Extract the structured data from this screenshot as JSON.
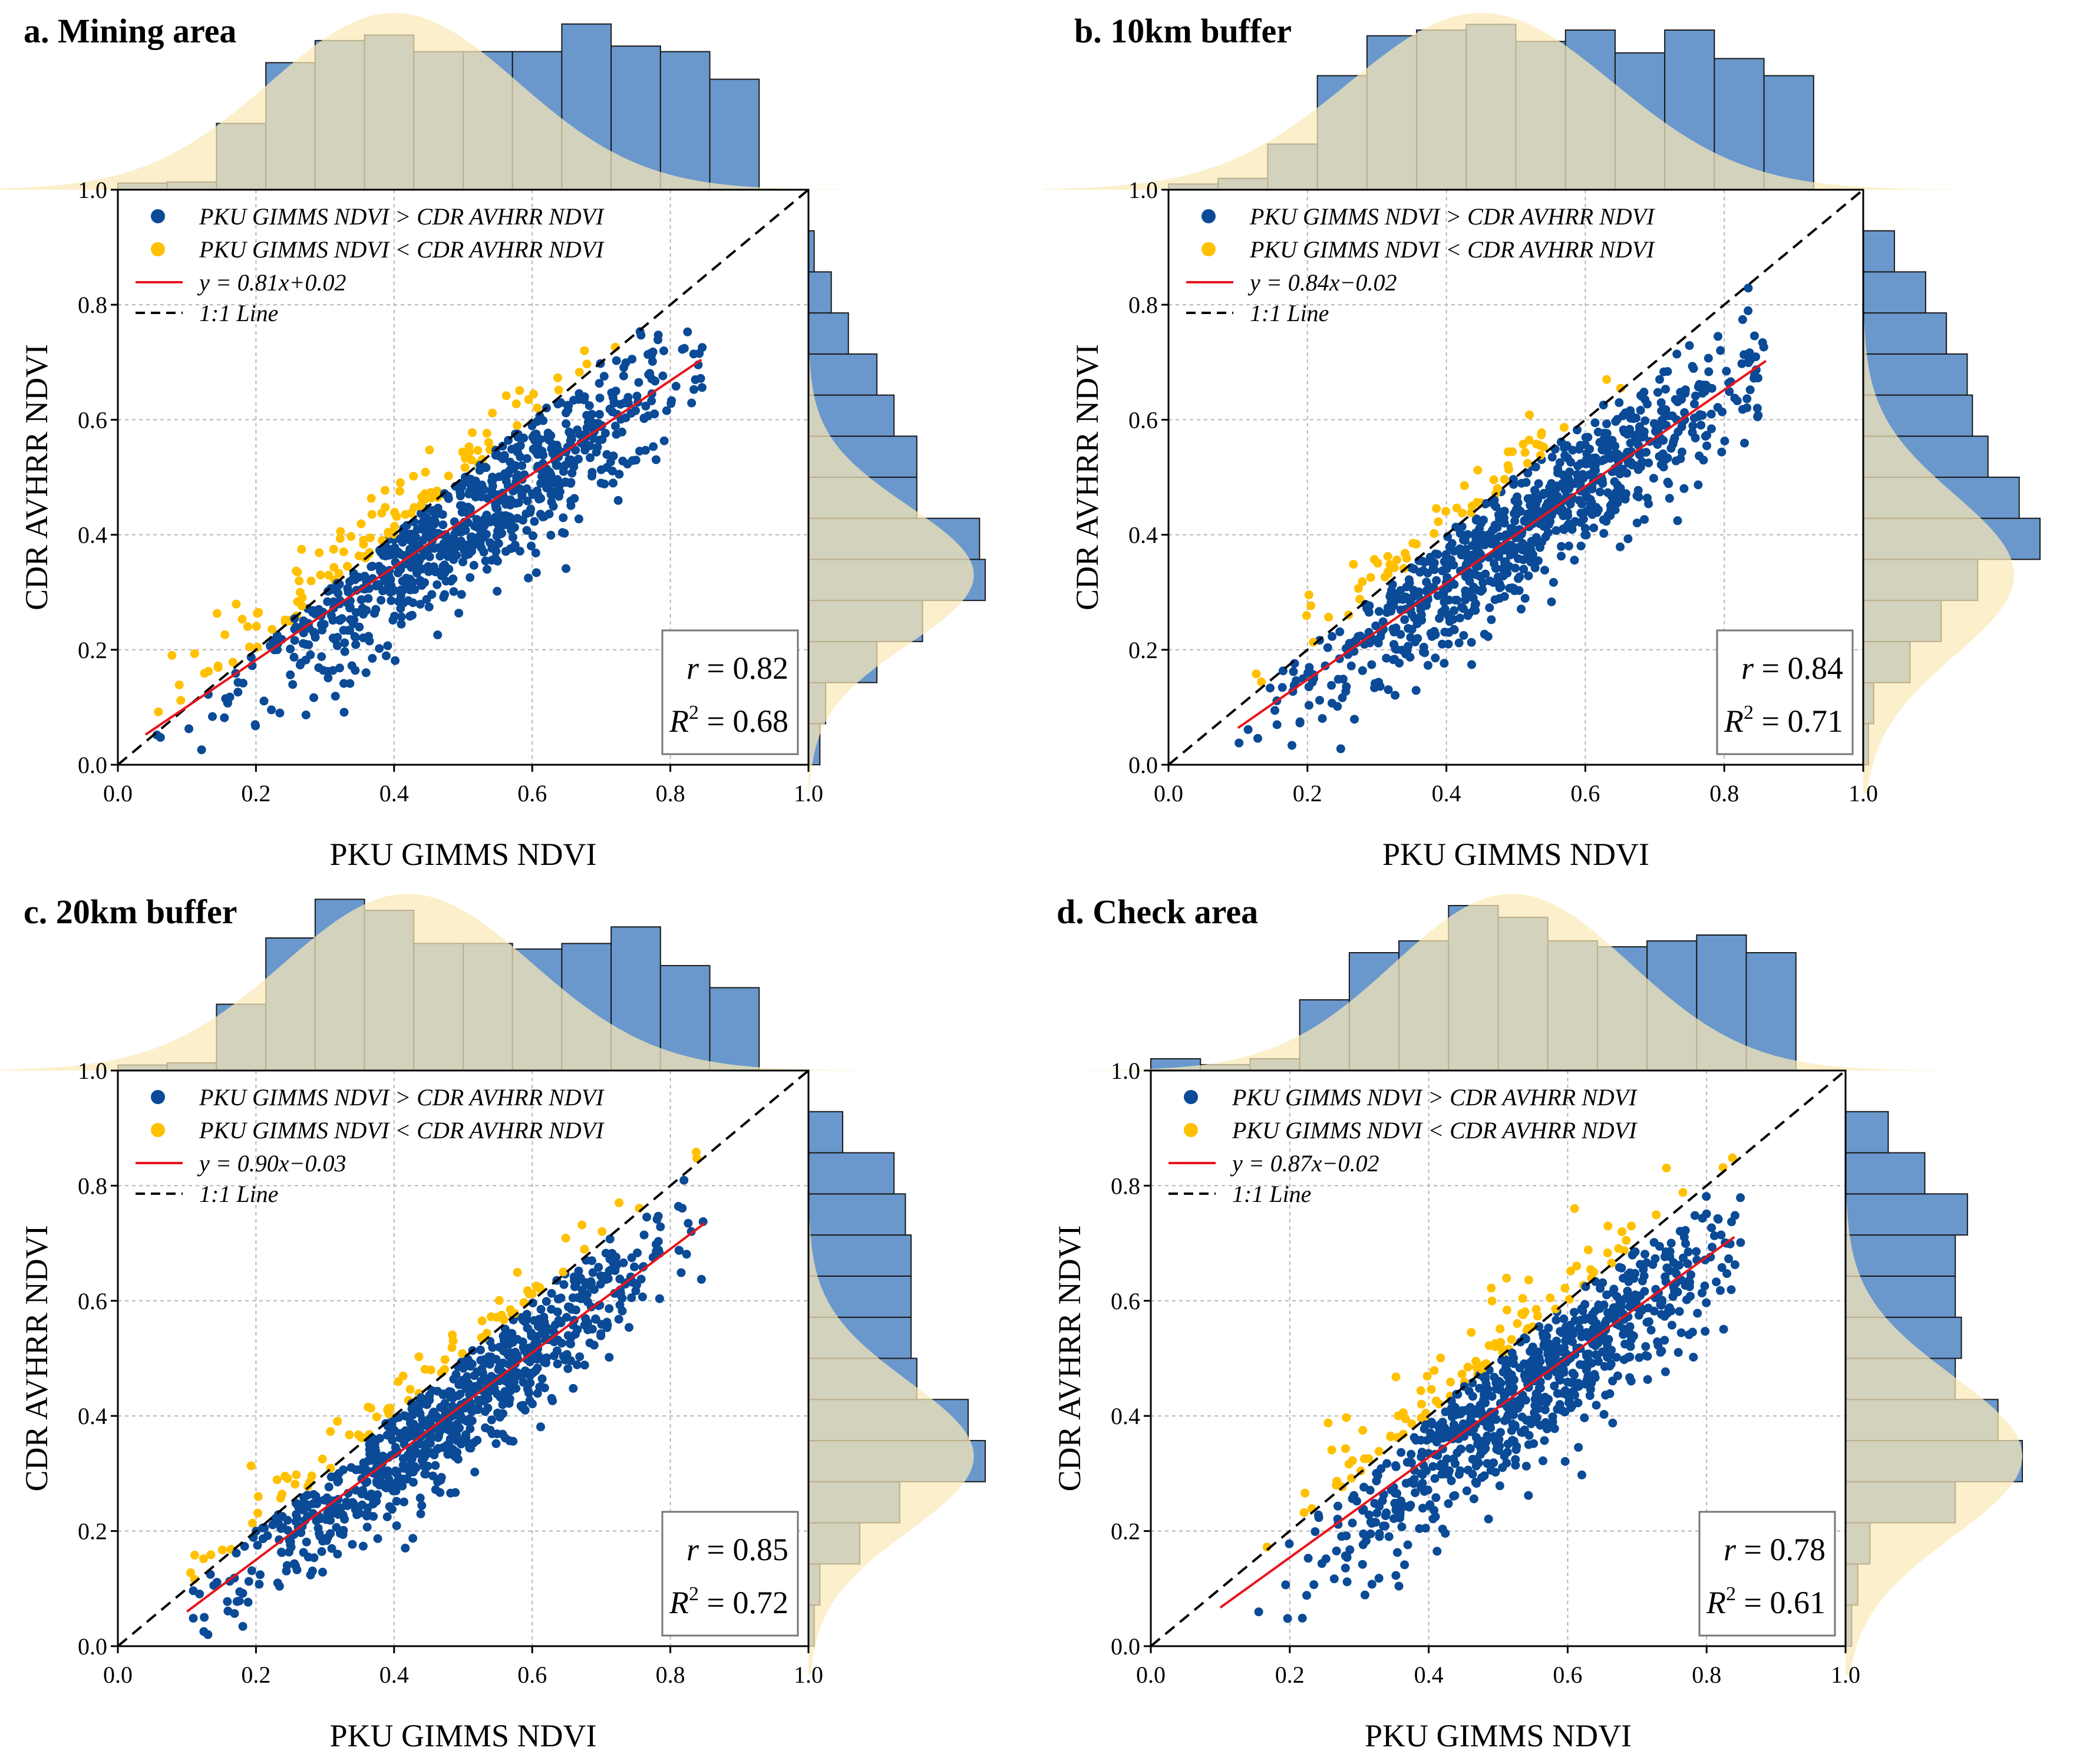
{
  "figure": {
    "colors": {
      "above": "#0a4a96",
      "below": "#ffc000",
      "fit": "#e8141c",
      "one_to_one": "#000000",
      "hist_fill": "#6a98cc",
      "kde_fill": "#fbe9b7",
      "grid": "#b5b5b5"
    }
  },
  "chart_data": [
    {
      "id": "a",
      "type": "scatter",
      "title": "a. Mining area",
      "xlabel": "PKU GIMMS NDVI",
      "ylabel": "CDR AVHRR NDVI",
      "xlim": [
        0.0,
        1.0
      ],
      "ylim": [
        0.0,
        1.0
      ],
      "xticks": [
        "0.0",
        "0.2",
        "0.4",
        "0.6",
        "0.8",
        "1.0"
      ],
      "yticks": [
        "0.0",
        "0.2",
        "0.4",
        "0.6",
        "0.8",
        "1.0"
      ],
      "legend": {
        "above": "PKU GIMMS NDVI > CDR AVHRR NDVI",
        "below": "PKU GIMMS NDVI < CDR AVHRR NDVI",
        "fit": "y = 0.81x+0.02",
        "one_to_one": "1:1 Line"
      },
      "fit": {
        "slope": 0.81,
        "intercept": 0.02,
        "x_range": [
          0.04,
          0.845
        ]
      },
      "stats": {
        "r_label": "r",
        "r_value": "0.82",
        "r2_label": "R",
        "r2_sup": "2",
        "r2_value": "0.68"
      },
      "scatter": {
        "n_points": 900,
        "x_center": 0.5,
        "x_spread": 0.17,
        "x_range": [
          0.04,
          0.85
        ],
        "residual_sd": 0.065
      },
      "hist_x": [
        0.06,
        0.07,
        0.6,
        1.15,
        1.35,
        1.4,
        1.25,
        1.25,
        1.25,
        1.5,
        1.3,
        1.25,
        1.0,
        0.0
      ],
      "hist_y": [
        0.1,
        0.15,
        0.6,
        1.0,
        1.55,
        1.5,
        0.95,
        0.95,
        0.75,
        0.6,
        0.35,
        0.2,
        0.05,
        0.0
      ],
      "kde_x": {
        "mu": 0.4,
        "sigma": 0.18,
        "peak": 1.6
      },
      "kde_y": {
        "mu": 0.33,
        "sigma": 0.12,
        "peak": 1.45
      }
    },
    {
      "id": "b",
      "type": "scatter",
      "title": "b. 10km buffer",
      "xlabel": "PKU GIMMS NDVI",
      "ylabel": "CDR AVHRR NDVI",
      "xlim": [
        0.0,
        1.0
      ],
      "ylim": [
        0.0,
        1.0
      ],
      "xticks": [
        "0.0",
        "0.2",
        "0.4",
        "0.6",
        "0.8",
        "1.0"
      ],
      "yticks": [
        "0.0",
        "0.2",
        "0.4",
        "0.6",
        "0.8",
        "1.0"
      ],
      "legend": {
        "above": "PKU GIMMS NDVI > CDR AVHRR NDVI",
        "below": "PKU GIMMS NDVI < CDR AVHRR NDVI",
        "fit": "y = 0.84x−0.02",
        "one_to_one": "1:1 Line"
      },
      "fit": {
        "slope": 0.84,
        "intercept": -0.02,
        "x_range": [
          0.1,
          0.86
        ]
      },
      "stats": {
        "r_label": "r",
        "r_value": "0.84",
        "r2_label": "R",
        "r2_sup": "2",
        "r2_value": "0.71"
      },
      "scatter": {
        "n_points": 900,
        "x_center": 0.52,
        "x_spread": 0.17,
        "x_range": [
          0.1,
          0.86
        ],
        "residual_sd": 0.06
      },
      "hist_x": [
        0.05,
        0.1,
        0.4,
        1.0,
        1.35,
        1.4,
        1.45,
        1.3,
        1.4,
        1.2,
        1.4,
        1.15,
        1.0,
        0.0
      ],
      "hist_y": [
        0.05,
        0.1,
        0.45,
        0.75,
        1.1,
        1.7,
        1.5,
        1.2,
        1.05,
        1.0,
        0.8,
        0.6,
        0.3,
        0.0
      ],
      "kde_x": {
        "mu": 0.45,
        "sigma": 0.19,
        "peak": 1.55
      },
      "kde_y": {
        "mu": 0.33,
        "sigma": 0.14,
        "peak": 1.45
      }
    },
    {
      "id": "c",
      "type": "scatter",
      "title": "c. 20km buffer",
      "xlabel": "PKU GIMMS NDVI",
      "ylabel": "CDR AVHRR NDVI",
      "xlim": [
        0.0,
        1.0
      ],
      "ylim": [
        0.0,
        1.0
      ],
      "xticks": [
        "0.0",
        "0.2",
        "0.4",
        "0.6",
        "0.8",
        "1.0"
      ],
      "yticks": [
        "0.0",
        "0.2",
        "0.4",
        "0.6",
        "0.8",
        "1.0"
      ],
      "legend": {
        "above": "PKU GIMMS NDVI > CDR AVHRR NDVI",
        "below": "PKU GIMMS NDVI < CDR AVHRR NDVI",
        "fit": "y = 0.90x−0.03",
        "one_to_one": "1:1 Line"
      },
      "fit": {
        "slope": 0.9,
        "intercept": -0.03,
        "x_range": [
          0.1,
          0.85
        ]
      },
      "stats": {
        "r_label": "r",
        "r_value": "0.85",
        "r2_label": "R",
        "r2_sup": "2",
        "r2_value": "0.72"
      },
      "scatter": {
        "n_points": 900,
        "x_center": 0.48,
        "x_spread": 0.17,
        "x_range": [
          0.1,
          0.85
        ],
        "residual_sd": 0.06
      },
      "hist_x": [
        0.05,
        0.07,
        0.6,
        1.2,
        1.55,
        1.45,
        1.15,
        1.15,
        1.1,
        1.15,
        1.3,
        0.95,
        0.75,
        0.0
      ],
      "hist_y": [
        0.05,
        0.1,
        0.45,
        0.8,
        1.55,
        1.4,
        0.95,
        0.9,
        0.9,
        0.9,
        0.85,
        0.75,
        0.3,
        0.0
      ],
      "kde_x": {
        "mu": 0.42,
        "sigma": 0.18,
        "peak": 1.6
      },
      "kde_y": {
        "mu": 0.33,
        "sigma": 0.13,
        "peak": 1.45
      }
    },
    {
      "id": "d",
      "type": "scatter",
      "title": "d. Check area",
      "xlabel": "PKU GIMMS NDVI",
      "ylabel": "CDR AVHRR NDVI",
      "xlim": [
        0.0,
        1.0
      ],
      "ylim": [
        0.0,
        1.0
      ],
      "xticks": [
        "0.0",
        "0.2",
        "0.4",
        "0.6",
        "0.8",
        "1.0"
      ],
      "yticks": [
        "0.0",
        "0.2",
        "0.4",
        "0.6",
        "0.8",
        "1.0"
      ],
      "legend": {
        "above": "PKU GIMMS NDVI > CDR AVHRR NDVI",
        "below": "PKU GIMMS NDVI < CDR AVHRR NDVI",
        "fit": "y = 0.87x−0.02",
        "one_to_one": "1:1 Line"
      },
      "fit": {
        "slope": 0.87,
        "intercept": -0.02,
        "x_range": [
          0.1,
          0.84
        ]
      },
      "stats": {
        "r_label": "r",
        "r_value": "0.78",
        "r2_label": "R",
        "r2_sup": "2",
        "r2_value": "0.61"
      },
      "scatter": {
        "n_points": 900,
        "x_center": 0.55,
        "x_spread": 0.16,
        "x_range": [
          0.1,
          0.85
        ],
        "residual_sd": 0.07
      },
      "hist_x": [
        0.1,
        0.05,
        0.1,
        0.6,
        1.0,
        1.1,
        1.4,
        1.3,
        1.1,
        1.05,
        1.1,
        1.15,
        1.0,
        0.0
      ],
      "hist_y": [
        0.05,
        0.1,
        0.2,
        0.9,
        1.45,
        1.25,
        0.9,
        0.95,
        0.9,
        0.9,
        1.0,
        0.65,
        0.35,
        0.0
      ],
      "kde_x": {
        "mu": 0.52,
        "sigma": 0.17,
        "peak": 1.5
      },
      "kde_y": {
        "mu": 0.33,
        "sigma": 0.14,
        "peak": 1.45
      }
    }
  ]
}
